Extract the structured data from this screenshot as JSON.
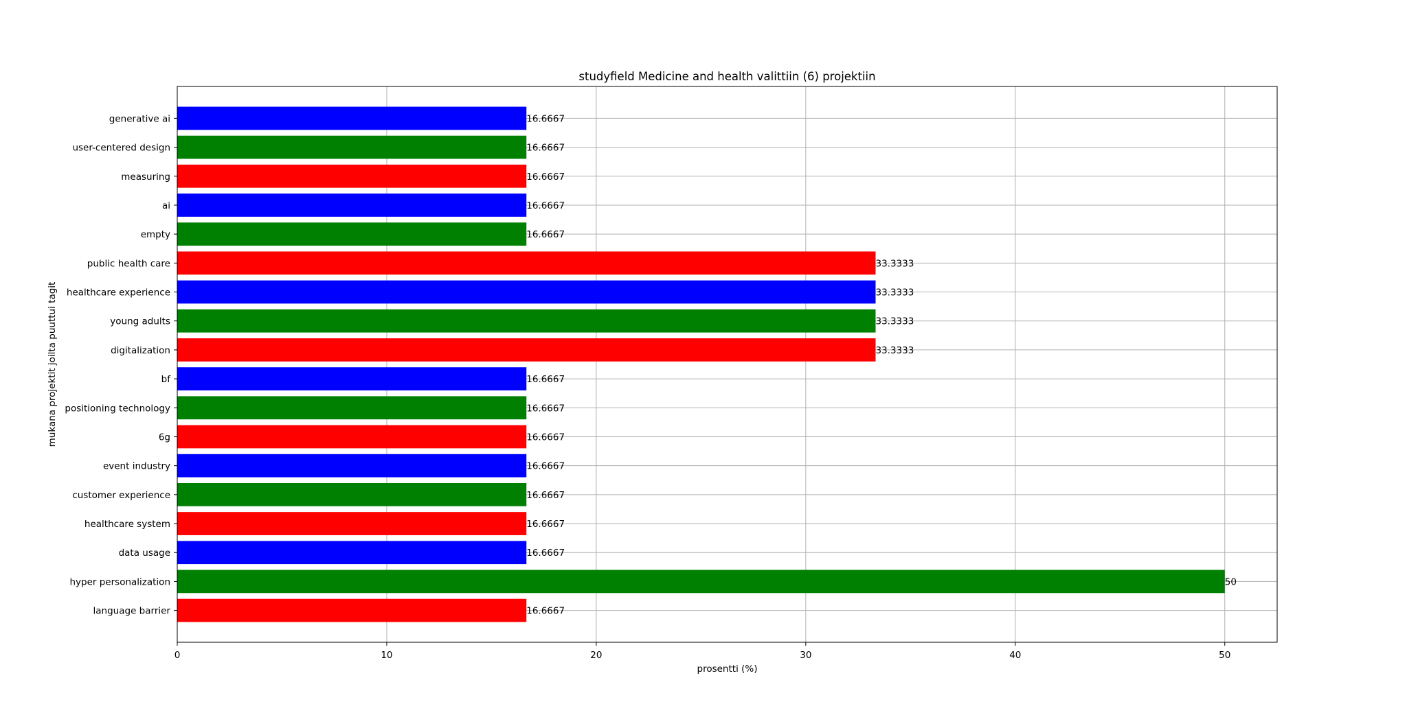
{
  "chart_data": {
    "type": "bar",
    "orientation": "horizontal",
    "title": "studyfield Medicine and health valittiin (6) projektiin",
    "xlabel": "prosentti (%)",
    "ylabel": "mukana projektit joilta puuttui tagit",
    "xlim": [
      0,
      52.5
    ],
    "xticks": [
      0,
      10,
      20,
      30,
      40,
      50
    ],
    "grid": true,
    "categories": [
      "generative ai",
      "user-centered design",
      "measuring",
      "ai",
      "empty",
      "public health care",
      "healthcare experience",
      "young adults",
      "digitalization",
      "bf",
      "positioning technology",
      "6g",
      "event industry",
      "customer experience",
      "healthcare system",
      "data usage",
      "hyper personalization",
      "language barrier"
    ],
    "values": [
      16.6667,
      16.6667,
      16.6667,
      16.6667,
      16.6667,
      33.3333,
      33.3333,
      33.3333,
      33.3333,
      16.6667,
      16.6667,
      16.6667,
      16.6667,
      16.6667,
      16.6667,
      16.6667,
      50,
      16.6667
    ],
    "value_labels": [
      "16.6667",
      "16.6667",
      "16.6667",
      "16.6667",
      "16.6667",
      "33.3333",
      "33.3333",
      "33.3333",
      "33.3333",
      "16.6667",
      "16.6667",
      "16.6667",
      "16.6667",
      "16.6667",
      "16.6667",
      "16.6667",
      "50",
      "16.6667"
    ],
    "bar_colors": [
      "#0000ff",
      "#008000",
      "#ff0000",
      "#0000ff",
      "#008000",
      "#ff0000",
      "#0000ff",
      "#008000",
      "#ff0000",
      "#0000ff",
      "#008000",
      "#ff0000",
      "#0000ff",
      "#008000",
      "#ff0000",
      "#0000ff",
      "#008000",
      "#ff0000"
    ]
  }
}
